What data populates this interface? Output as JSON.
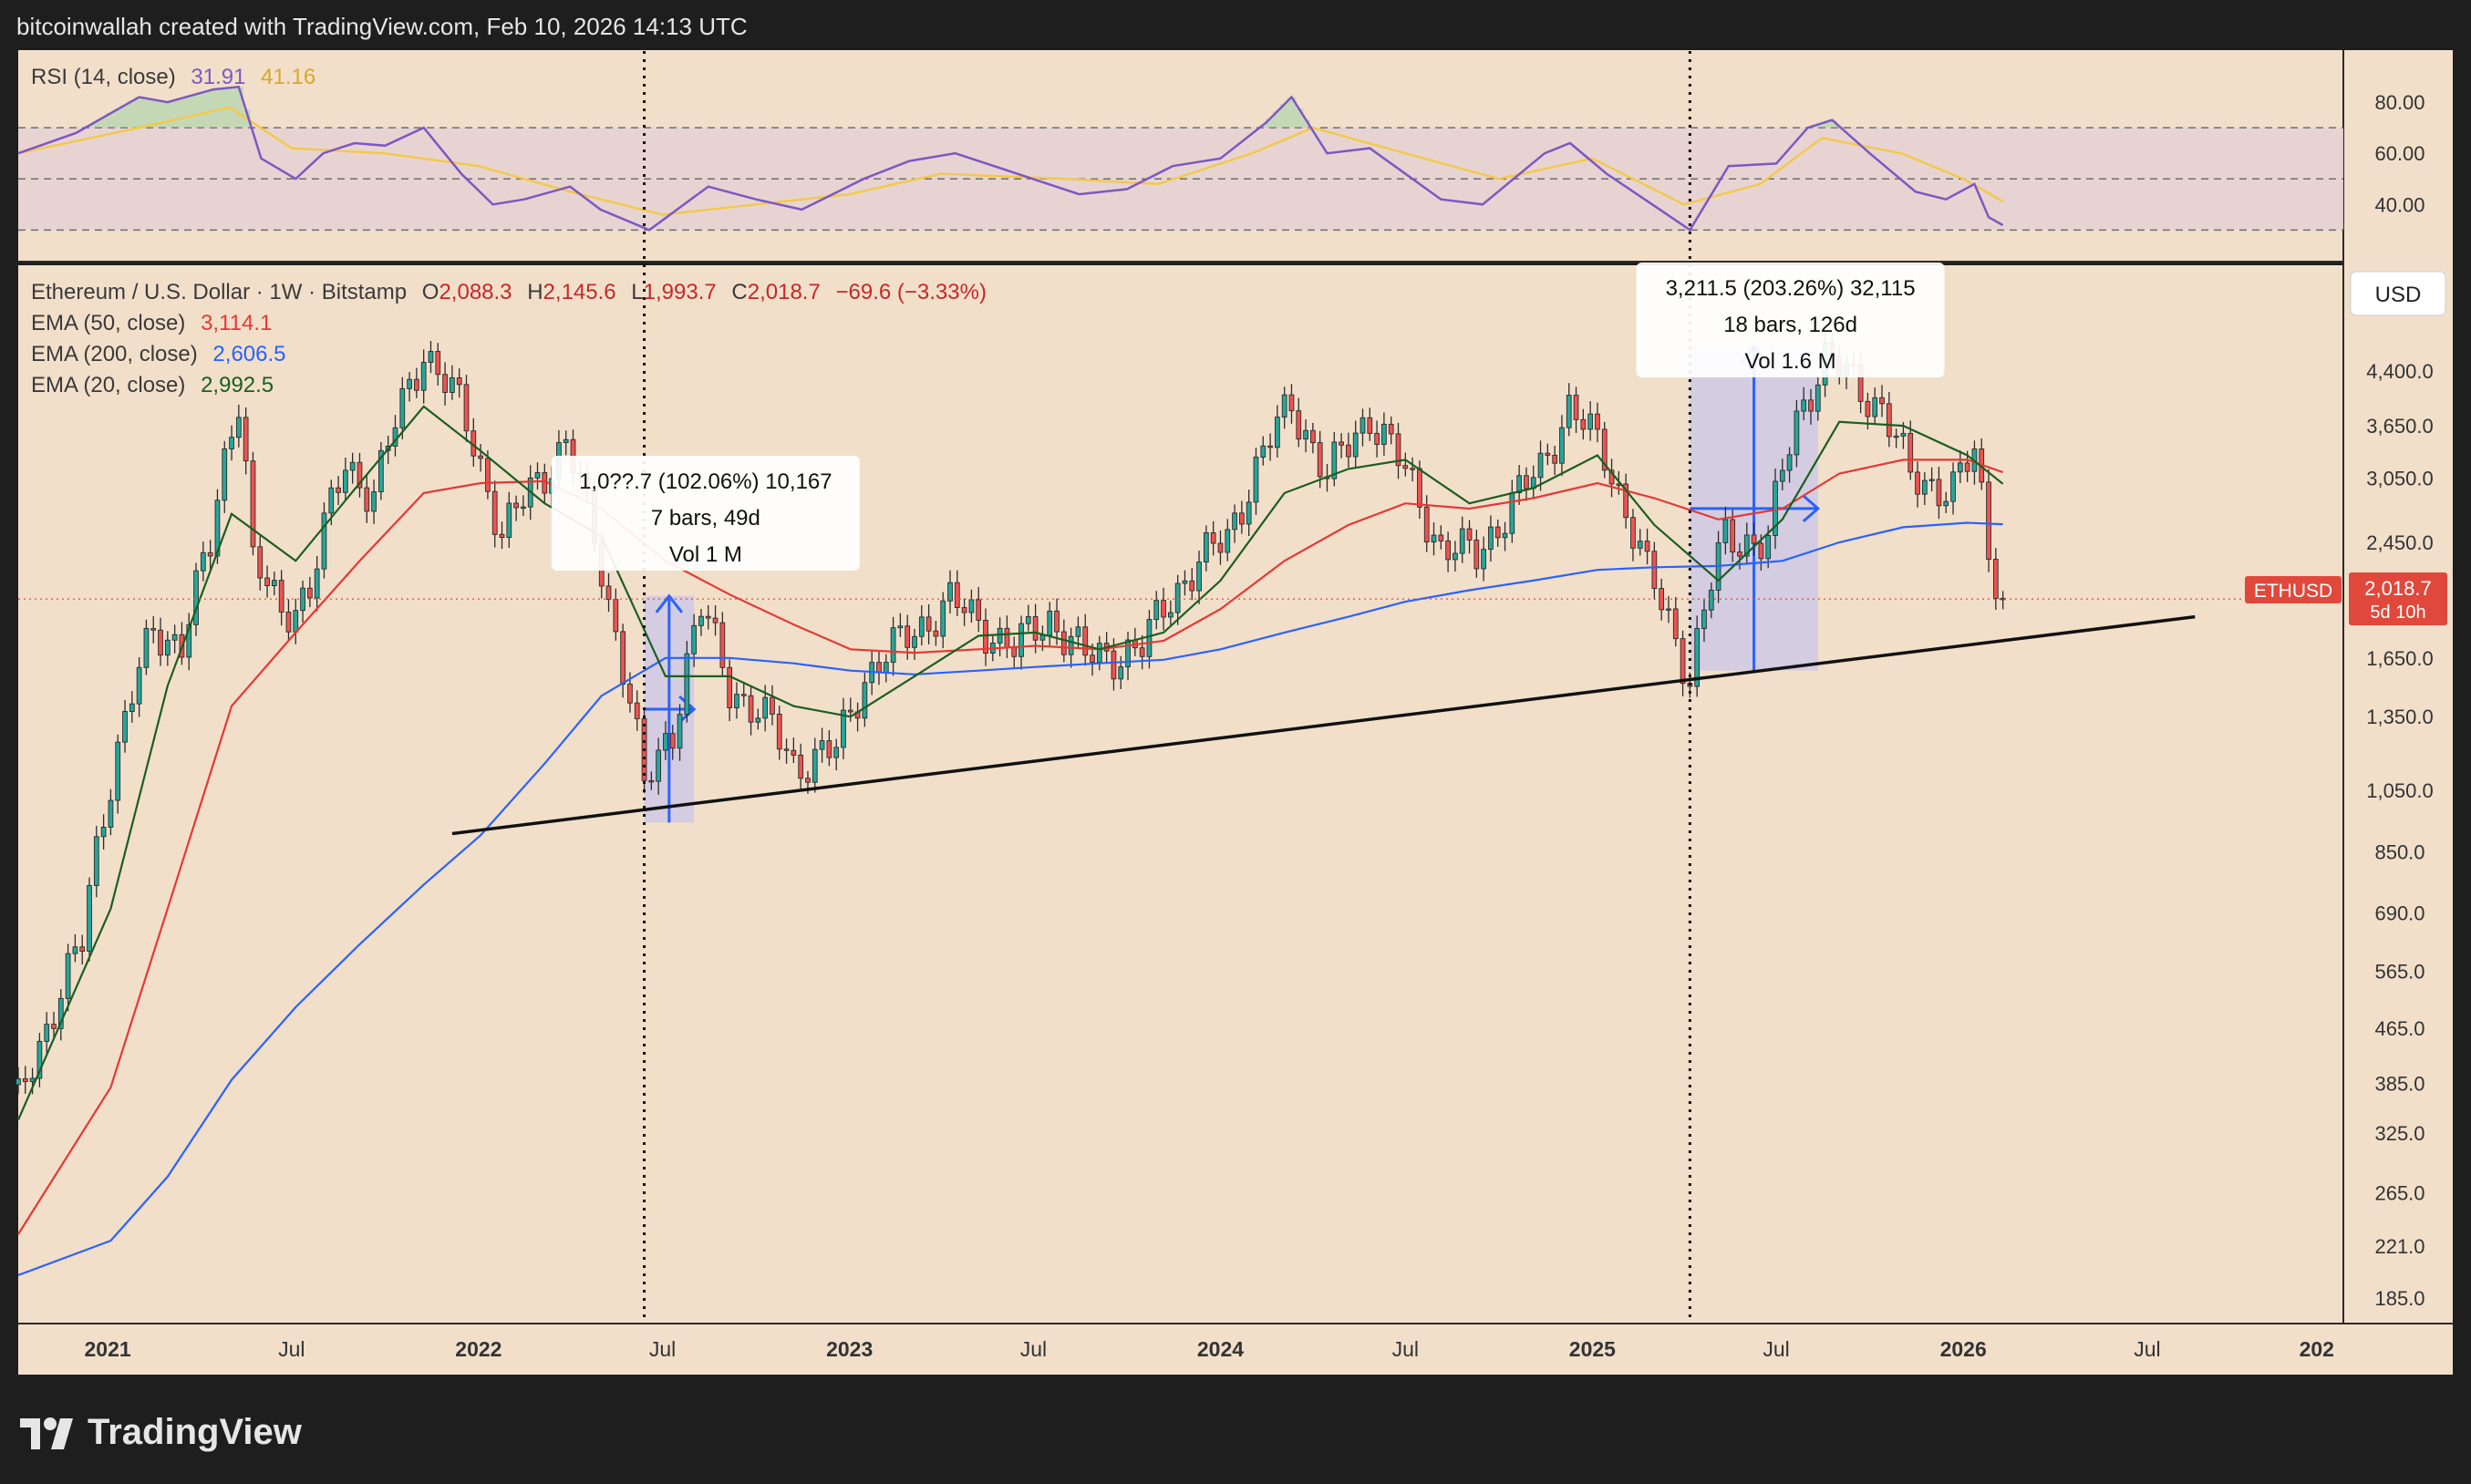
{
  "header": {
    "attribution": "bitcoinwallah created with TradingView.com, Feb 10, 2026 14:13 UTC"
  },
  "footer": {
    "brand": "TradingView"
  },
  "colors": {
    "background": "#f2dfca",
    "frame": "#1e1e1e",
    "bull": "#26a69a",
    "bear": "#ef5350",
    "candle_outline": "#2b2b2b",
    "ema50": "#e53935",
    "ema200": "#2962ff",
    "ema20": "#1b5e20",
    "rsi": "#7e57c2",
    "rsi_ma": "#f2c94c",
    "rsi_band": "#e6d3d3",
    "measure_fill": "#c9c6e8",
    "measure_line": "#2962ff",
    "price_tag": "#e0483c"
  },
  "rsi_panel": {
    "legend_name": "RSI (14, close)",
    "rsi_value": "31.91",
    "rsi_ma_value": "41.16",
    "ticks": [
      "80.00",
      "60.00",
      "40.00"
    ],
    "tick_values": [
      80,
      60,
      40
    ],
    "bands": [
      70,
      50,
      30
    ]
  },
  "price_panel": {
    "title": "Ethereum / U.S. Dollar · 1W · Bitstamp",
    "ohlc": {
      "open_label": "O",
      "open": "2,088.3",
      "high_label": "H",
      "high": "2,145.6",
      "low_label": "L",
      "low": "1,993.7",
      "close_label": "C",
      "close": "2,018.7",
      "change": "−69.6 (−3.33%)"
    },
    "indicators": [
      {
        "name": "EMA (50, close)",
        "value": "3,114.1",
        "color": "#e53935"
      },
      {
        "name": "EMA (200, close)",
        "value": "2,606.5",
        "color": "#2962ff"
      },
      {
        "name": "EMA (20, close)",
        "value": "2,992.5",
        "color": "#1b5e20"
      }
    ],
    "currency": "USD",
    "ticks": [
      "4,400.0",
      "3,650.0",
      "3,050.0",
      "2,450.0",
      "1,650.0",
      "1,350.0",
      "1,050.0",
      "850.0",
      "690.0",
      "565.0",
      "465.0",
      "385.0",
      "325.0",
      "265.0",
      "221.0",
      "185.0"
    ],
    "tick_values": [
      4400,
      3650,
      3050,
      2450,
      1650,
      1350,
      1050,
      850,
      690,
      565,
      465,
      385,
      325,
      265,
      221,
      185
    ],
    "last_price_tag": {
      "symbol": "ETHUSD",
      "price": "2,018.7",
      "countdown": "5d 10h"
    }
  },
  "time_axis": {
    "labels": [
      "2021",
      "Jul",
      "2022",
      "Jul",
      "2023",
      "Jul",
      "2024",
      "Jul",
      "2025",
      "Jul",
      "2026",
      "Jul",
      "202"
    ],
    "dates": [
      "2021-01-01",
      "2021-07-01",
      "2022-01-01",
      "2022-07-01",
      "2023-01-01",
      "2023-07-01",
      "2024-01-01",
      "2024-07-01",
      "2025-01-01",
      "2025-07-01",
      "2026-01-01",
      "2026-07-01",
      "2027-01-01"
    ]
  },
  "annotations": {
    "measure_1": {
      "line1": "1,0??.7 (102.06%) 10,167",
      "line2": "7 bars, 49d",
      "line3": "Vol 1 M",
      "start_date": "2022-06-13",
      "end_date": "2022-08-01",
      "low_price": 940,
      "high_price": 2040
    },
    "measure_2": {
      "line1": "3,211.5 (203.26%) 32,115",
      "line2": "18 bars, 126d",
      "line3": "Vol 1.6 M",
      "start_date": "2025-04-07",
      "end_date": "2025-08-11",
      "low_price": 1580,
      "high_price": 4790
    },
    "vlines": [
      "2022-06-13",
      "2025-04-07"
    ],
    "trendline": {
      "start_date": "2021-12-06",
      "start_price": 905,
      "end_date": "2026-08-17",
      "end_price": 1900
    }
  },
  "chart_data": {
    "type": "candlestick",
    "title": "Ethereum / U.S. Dollar · 1W · Bitstamp",
    "x_axis": "date",
    "y_axis": "price (USD)",
    "y_scale": "log",
    "ylim": [
      170,
      6300
    ],
    "xlim": [
      "2020-10-05",
      "2027-01-10"
    ],
    "series": [
      {
        "name": "ETHUSD",
        "points": [
          [
            "2020-10-05",
            360
          ],
          [
            "2020-11-02",
            470
          ],
          [
            "2020-12-07",
            620
          ],
          [
            "2021-01-04",
            1100
          ],
          [
            "2021-02-15",
            1800
          ],
          [
            "2021-03-15",
            1750
          ],
          [
            "2021-04-12",
            2400
          ],
          [
            "2021-05-10",
            4100
          ],
          [
            "2021-05-24",
            2300
          ],
          [
            "2021-06-21",
            1900
          ],
          [
            "2021-07-19",
            2100
          ],
          [
            "2021-08-23",
            3200
          ],
          [
            "2021-09-20",
            2900
          ],
          [
            "2021-10-18",
            3900
          ],
          [
            "2021-11-08",
            4750
          ],
          [
            "2021-12-13",
            3900
          ],
          [
            "2022-01-24",
            2500
          ],
          [
            "2022-03-28",
            3450
          ],
          [
            "2022-05-09",
            2000
          ],
          [
            "2022-06-13",
            1050
          ],
          [
            "2022-07-11",
            1300
          ],
          [
            "2022-08-08",
            1950
          ],
          [
            "2022-09-05",
            1500
          ],
          [
            "2022-10-17",
            1300
          ],
          [
            "2022-11-07",
            1150
          ],
          [
            "2022-12-19",
            1200
          ],
          [
            "2023-01-16",
            1550
          ],
          [
            "2023-04-10",
            2000
          ],
          [
            "2023-06-12",
            1700
          ],
          [
            "2023-07-17",
            1900
          ],
          [
            "2023-08-21",
            1650
          ],
          [
            "2023-10-16",
            1700
          ],
          [
            "2023-11-13",
            2050
          ],
          [
            "2024-01-08",
            2500
          ],
          [
            "2024-03-11",
            3950
          ],
          [
            "2024-04-15",
            3050
          ],
          [
            "2024-05-27",
            3800
          ],
          [
            "2024-08-05",
            2400
          ],
          [
            "2024-09-09",
            2350
          ],
          [
            "2024-11-11",
            3150
          ],
          [
            "2024-12-09",
            3900
          ],
          [
            "2025-01-13",
            3300
          ],
          [
            "2025-02-24",
            2200
          ],
          [
            "2025-04-07",
            1550
          ],
          [
            "2025-05-12",
            2500
          ],
          [
            "2025-06-23",
            2450
          ],
          [
            "2025-07-21",
            3750
          ],
          [
            "2025-08-18",
            4600
          ],
          [
            "2025-09-22",
            4150
          ],
          [
            "2025-10-13",
            3900
          ],
          [
            "2025-11-10",
            3050
          ],
          [
            "2025-12-22",
            2950
          ],
          [
            "2026-01-12",
            3300
          ],
          [
            "2026-01-26",
            2400
          ],
          [
            "2026-02-09",
            2018.7
          ]
        ]
      },
      {
        "name": "EMA (20, close)",
        "points": [
          [
            "2020-10-05",
            340
          ],
          [
            "2021-01-04",
            700
          ],
          [
            "2021-03-01",
            1500
          ],
          [
            "2021-05-03",
            2700
          ],
          [
            "2021-07-05",
            2300
          ],
          [
            "2021-09-06",
            3000
          ],
          [
            "2021-11-08",
            3900
          ],
          [
            "2022-01-03",
            3350
          ],
          [
            "2022-03-07",
            2800
          ],
          [
            "2022-05-02",
            2500
          ],
          [
            "2022-07-04",
            1550
          ],
          [
            "2022-09-05",
            1550
          ],
          [
            "2022-11-07",
            1400
          ],
          [
            "2023-01-02",
            1350
          ],
          [
            "2023-03-06",
            1550
          ],
          [
            "2023-05-08",
            1780
          ],
          [
            "2023-07-03",
            1800
          ],
          [
            "2023-09-04",
            1700
          ],
          [
            "2023-11-06",
            1800
          ],
          [
            "2024-01-01",
            2150
          ],
          [
            "2024-03-04",
            2900
          ],
          [
            "2024-05-06",
            3150
          ],
          [
            "2024-07-01",
            3250
          ],
          [
            "2024-09-02",
            2800
          ],
          [
            "2024-11-04",
            2950
          ],
          [
            "2025-01-06",
            3300
          ],
          [
            "2025-03-03",
            2600
          ],
          [
            "2025-05-05",
            2150
          ],
          [
            "2025-07-07",
            2650
          ],
          [
            "2025-09-01",
            3700
          ],
          [
            "2025-11-03",
            3650
          ],
          [
            "2026-01-05",
            3300
          ],
          [
            "2026-02-09",
            2992.5
          ]
        ]
      },
      {
        "name": "EMA (50, close)",
        "points": [
          [
            "2020-10-05",
            230
          ],
          [
            "2021-01-04",
            380
          ],
          [
            "2021-03-01",
            700
          ],
          [
            "2021-05-03",
            1400
          ],
          [
            "2021-07-05",
            1800
          ],
          [
            "2021-09-06",
            2300
          ],
          [
            "2021-11-08",
            2900
          ],
          [
            "2022-01-03",
            3000
          ],
          [
            "2022-03-07",
            3020
          ],
          [
            "2022-05-02",
            2750
          ],
          [
            "2022-07-04",
            2300
          ],
          [
            "2022-09-05",
            2050
          ],
          [
            "2022-11-07",
            1850
          ],
          [
            "2023-01-02",
            1700
          ],
          [
            "2023-03-06",
            1680
          ],
          [
            "2023-05-08",
            1700
          ],
          [
            "2023-07-03",
            1720
          ],
          [
            "2023-09-04",
            1700
          ],
          [
            "2023-11-06",
            1750
          ],
          [
            "2024-01-01",
            1950
          ],
          [
            "2024-03-04",
            2300
          ],
          [
            "2024-05-06",
            2600
          ],
          [
            "2024-07-01",
            2800
          ],
          [
            "2024-09-02",
            2750
          ],
          [
            "2024-11-04",
            2850
          ],
          [
            "2025-01-06",
            3000
          ],
          [
            "2025-03-03",
            2850
          ],
          [
            "2025-05-05",
            2650
          ],
          [
            "2025-07-07",
            2750
          ],
          [
            "2025-09-01",
            3100
          ],
          [
            "2025-11-03",
            3250
          ],
          [
            "2026-01-05",
            3250
          ],
          [
            "2026-02-09",
            3114.1
          ]
        ]
      },
      {
        "name": "EMA (200, close)",
        "points": [
          [
            "2020-10-05",
            200
          ],
          [
            "2021-01-04",
            225
          ],
          [
            "2021-03-01",
            280
          ],
          [
            "2021-05-03",
            390
          ],
          [
            "2021-07-05",
            500
          ],
          [
            "2021-09-06",
            620
          ],
          [
            "2021-11-08",
            760
          ],
          [
            "2022-01-03",
            900
          ],
          [
            "2022-03-07",
            1150
          ],
          [
            "2022-05-02",
            1450
          ],
          [
            "2022-07-04",
            1650
          ],
          [
            "2022-09-05",
            1650
          ],
          [
            "2022-11-07",
            1620
          ],
          [
            "2023-01-02",
            1580
          ],
          [
            "2023-03-06",
            1560
          ],
          [
            "2023-05-08",
            1580
          ],
          [
            "2023-07-03",
            1600
          ],
          [
            "2023-09-04",
            1620
          ],
          [
            "2023-11-06",
            1640
          ],
          [
            "2024-01-01",
            1700
          ],
          [
            "2024-03-04",
            1800
          ],
          [
            "2024-05-06",
            1900
          ],
          [
            "2024-07-01",
            2000
          ],
          [
            "2024-09-02",
            2080
          ],
          [
            "2024-11-04",
            2150
          ],
          [
            "2025-01-06",
            2230
          ],
          [
            "2025-03-03",
            2250
          ],
          [
            "2025-05-05",
            2260
          ],
          [
            "2025-07-07",
            2300
          ],
          [
            "2025-09-01",
            2450
          ],
          [
            "2025-11-03",
            2580
          ],
          [
            "2026-01-05",
            2620
          ],
          [
            "2026-02-09",
            2606.5
          ]
        ]
      },
      {
        "name": "RSI (14, close)",
        "axis": "rsi",
        "points": [
          [
            "2020-10-05",
            60
          ],
          [
            "2020-12-01",
            68
          ],
          [
            "2021-02-01",
            82
          ],
          [
            "2021-03-01",
            80
          ],
          [
            "2021-04-15",
            85
          ],
          [
            "2021-05-10",
            86
          ],
          [
            "2021-06-01",
            58
          ],
          [
            "2021-07-05",
            50
          ],
          [
            "2021-08-01",
            60
          ],
          [
            "2021-09-01",
            64
          ],
          [
            "2021-10-01",
            63
          ],
          [
            "2021-11-08",
            70
          ],
          [
            "2021-12-15",
            52
          ],
          [
            "2022-01-15",
            40
          ],
          [
            "2022-02-15",
            42
          ],
          [
            "2022-04-01",
            47
          ],
          [
            "2022-05-01",
            38
          ],
          [
            "2022-06-18",
            30
          ],
          [
            "2022-08-15",
            47
          ],
          [
            "2022-10-01",
            42
          ],
          [
            "2022-11-15",
            38
          ],
          [
            "2023-01-15",
            50
          ],
          [
            "2023-03-01",
            57
          ],
          [
            "2023-04-15",
            60
          ],
          [
            "2023-06-15",
            52
          ],
          [
            "2023-08-15",
            44
          ],
          [
            "2023-10-01",
            46
          ],
          [
            "2023-11-15",
            55
          ],
          [
            "2024-01-01",
            58
          ],
          [
            "2024-02-15",
            72
          ],
          [
            "2024-03-11",
            82
          ],
          [
            "2024-04-15",
            60
          ],
          [
            "2024-05-27",
            62
          ],
          [
            "2024-08-05",
            42
          ],
          [
            "2024-09-15",
            40
          ],
          [
            "2024-11-15",
            60
          ],
          [
            "2024-12-10",
            64
          ],
          [
            "2025-01-15",
            52
          ],
          [
            "2025-03-01",
            40
          ],
          [
            "2025-04-07",
            30
          ],
          [
            "2025-05-15",
            55
          ],
          [
            "2025-07-01",
            56
          ],
          [
            "2025-08-01",
            70
          ],
          [
            "2025-08-25",
            73
          ],
          [
            "2025-10-01",
            60
          ],
          [
            "2025-11-15",
            45
          ],
          [
            "2025-12-15",
            42
          ],
          [
            "2026-01-12",
            48
          ],
          [
            "2026-01-26",
            35
          ],
          [
            "2026-02-09",
            31.91
          ]
        ]
      },
      {
        "name": "RSI-based MA",
        "axis": "rsi",
        "points": [
          [
            "2020-10-05",
            60
          ],
          [
            "2021-02-01",
            70
          ],
          [
            "2021-05-01",
            78
          ],
          [
            "2021-07-01",
            62
          ],
          [
            "2021-10-01",
            60
          ],
          [
            "2022-01-01",
            55
          ],
          [
            "2022-04-01",
            45
          ],
          [
            "2022-07-01",
            36
          ],
          [
            "2022-10-01",
            40
          ],
          [
            "2023-01-01",
            44
          ],
          [
            "2023-04-01",
            52
          ],
          [
            "2023-08-01",
            50
          ],
          [
            "2023-11-01",
            48
          ],
          [
            "2024-02-01",
            60
          ],
          [
            "2024-04-01",
            70
          ],
          [
            "2024-07-01",
            60
          ],
          [
            "2024-10-01",
            50
          ],
          [
            "2025-01-01",
            58
          ],
          [
            "2025-04-01",
            40
          ],
          [
            "2025-06-15",
            48
          ],
          [
            "2025-08-15",
            66
          ],
          [
            "2025-11-01",
            60
          ],
          [
            "2026-01-01",
            50
          ],
          [
            "2026-02-09",
            41.16
          ]
        ]
      }
    ]
  }
}
